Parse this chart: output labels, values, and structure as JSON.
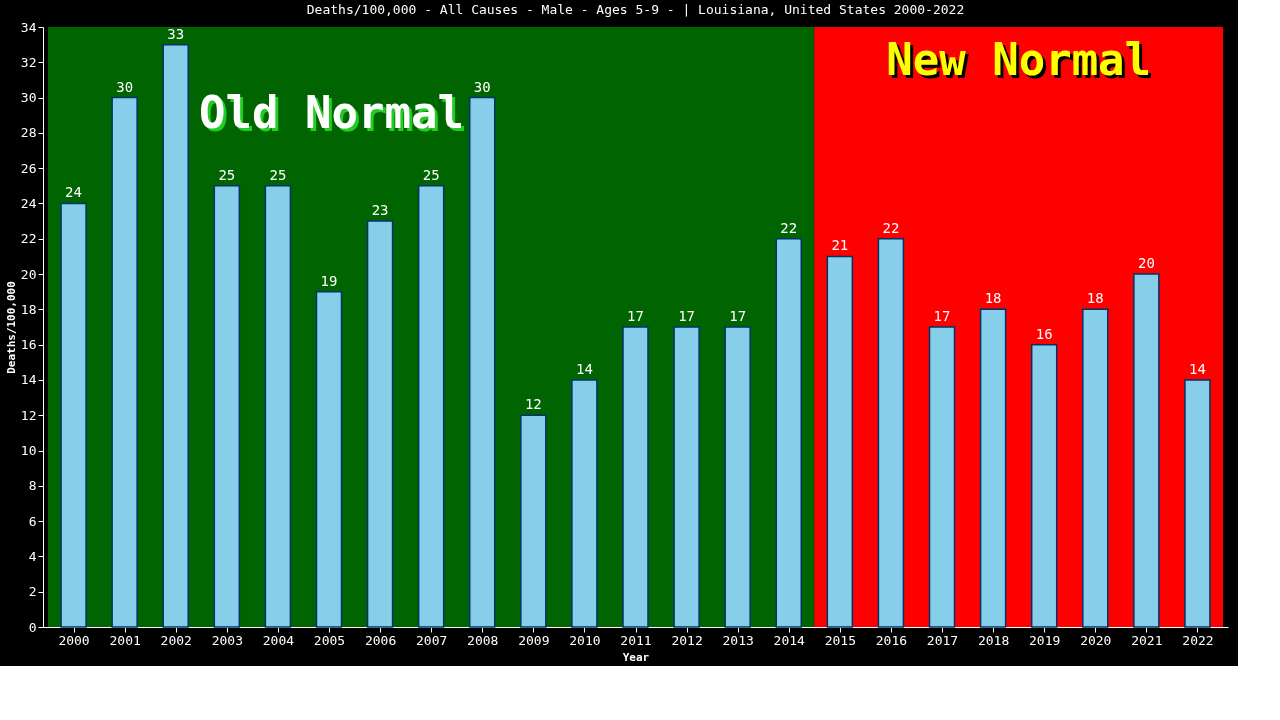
{
  "chart_data": {
    "type": "bar",
    "title": "Deaths/100,000 - All Causes - Male - Ages 5-9 -  | Louisiana, United States 2000-2022",
    "xlabel": "Year",
    "ylabel": "Deaths/100,000",
    "categories": [
      "2000",
      "2001",
      "2002",
      "2003",
      "2004",
      "2005",
      "2006",
      "2007",
      "2008",
      "2009",
      "2010",
      "2011",
      "2012",
      "2013",
      "2014",
      "2015",
      "2016",
      "2017",
      "2018",
      "2019",
      "2020",
      "2021",
      "2022"
    ],
    "values": [
      24,
      30,
      33,
      25,
      25,
      19,
      23,
      25,
      30,
      12,
      14,
      17,
      17,
      17,
      22,
      21,
      22,
      17,
      18,
      16,
      18,
      20,
      14
    ],
    "color": "#87ceeb",
    "ylim": [
      0,
      34
    ],
    "yticks": [
      0,
      2,
      4,
      6,
      8,
      10,
      12,
      14,
      16,
      18,
      20,
      22,
      24,
      26,
      28,
      30,
      32,
      34
    ],
    "grid": false,
    "data_labels": true,
    "bands": [
      {
        "axis": "x",
        "from": "2000",
        "to": "2014",
        "label": "Old Normal",
        "color": "#006400"
      },
      {
        "axis": "x",
        "from": "2015",
        "to": "2022",
        "label": "New Normal",
        "color": "#ff0000"
      }
    ]
  }
}
